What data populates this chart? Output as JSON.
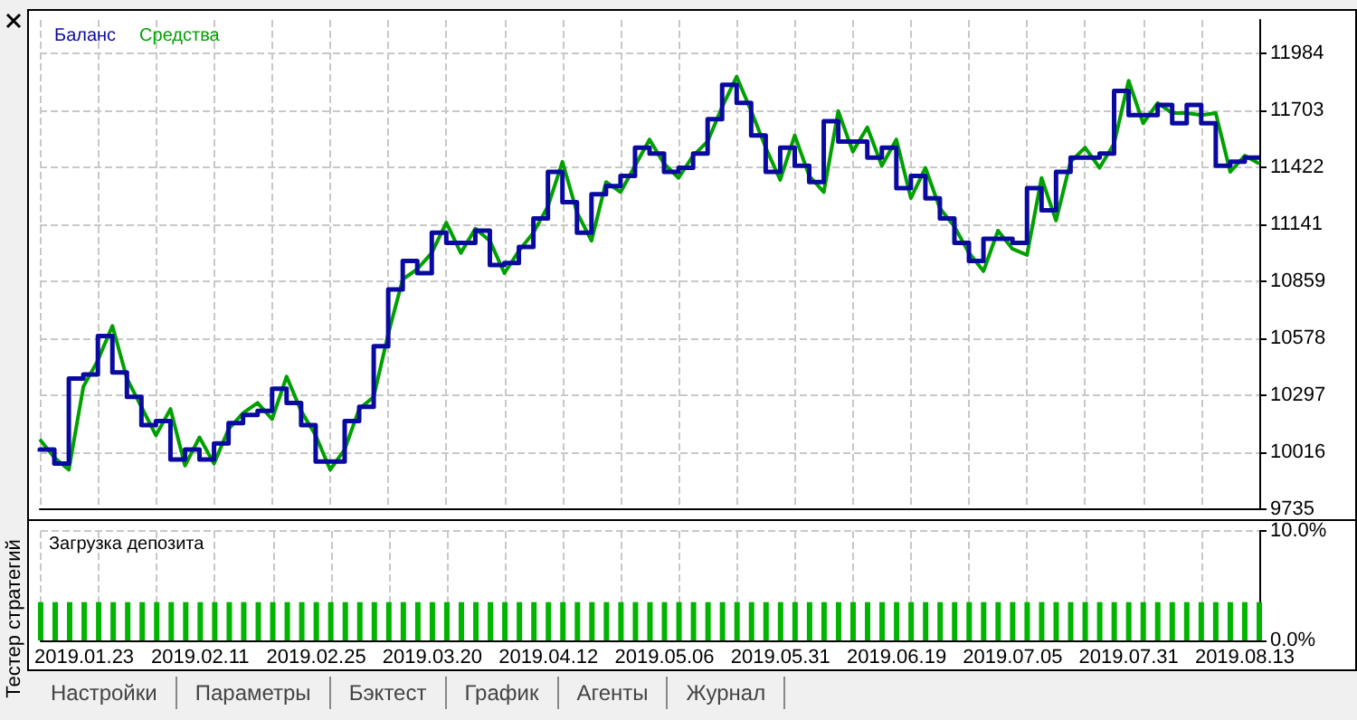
{
  "chart_data": [
    {
      "type": "line",
      "legend": "top left",
      "grid": true,
      "tick_labels": "y",
      "categories": [
        null,
        null,
        null,
        "2019.01.23",
        null,
        null,
        null,
        null,
        null,
        null,
        null,
        "2019.02.11",
        null,
        null,
        null,
        null,
        null,
        null,
        null,
        "2019.02.25",
        null,
        null,
        null,
        null,
        null,
        null,
        null,
        "2019.03.20",
        null,
        null,
        null,
        null,
        null,
        null,
        null,
        "2019.04.12",
        null,
        null,
        null,
        null,
        null,
        null,
        null,
        "2019.05.06",
        null,
        null,
        null,
        null,
        null,
        null,
        null,
        "2019.05.31",
        null,
        null,
        null,
        null,
        null,
        null,
        null,
        "2019.06.19",
        null,
        null,
        null,
        null,
        null,
        null,
        null,
        "2019.07.05",
        null,
        null,
        null,
        null,
        null,
        null,
        null,
        "2019.07.31",
        null,
        null,
        null,
        null,
        null,
        null,
        null,
        "2019.08.13",
        null
      ],
      "ylim": [
        9735,
        12150
      ],
      "yticks": [
        9735,
        10016,
        10297,
        10578,
        10859,
        11141,
        11422,
        11703,
        11984
      ],
      "series": [
        {
          "name": "Средства",
          "type": "line",
          "color": "#00a000",
          "values": [
            10080,
            9990,
            9930,
            10340,
            10470,
            10640,
            10380,
            10240,
            10100,
            10230,
            9950,
            10090,
            9960,
            10130,
            10210,
            10260,
            10180,
            10390,
            10220,
            10100,
            9930,
            10030,
            10230,
            10290,
            10600,
            10870,
            10920,
            11000,
            11150,
            11000,
            11120,
            11060,
            10900,
            11010,
            11100,
            11230,
            11450,
            11200,
            11060,
            11350,
            11300,
            11430,
            11560,
            11440,
            11370,
            11480,
            11550,
            11720,
            11870,
            11700,
            11520,
            11360,
            11580,
            11380,
            11300,
            11700,
            11500,
            11620,
            11430,
            11560,
            11270,
            11420,
            11220,
            11130,
            11000,
            10910,
            11110,
            11020,
            10990,
            11370,
            11160,
            11450,
            11520,
            11420,
            11540,
            11850,
            11640,
            11740,
            11690,
            11690,
            11680,
            11690,
            11400,
            11480,
            11440
          ]
        },
        {
          "name": "Баланс",
          "type": "step",
          "color": "#0a0aa0",
          "values": [
            10020,
            10030,
            9960,
            10380,
            10400,
            10590,
            10410,
            10290,
            10150,
            10170,
            9980,
            10030,
            9980,
            10060,
            10160,
            10200,
            10220,
            10330,
            10260,
            10150,
            9970,
            9970,
            10170,
            10240,
            10540,
            10820,
            10960,
            10900,
            11100,
            11050,
            11050,
            11110,
            10940,
            10950,
            11030,
            11170,
            11400,
            11250,
            11100,
            11290,
            11330,
            11380,
            11520,
            11490,
            11400,
            11420,
            11490,
            11660,
            11830,
            11740,
            11580,
            11400,
            11520,
            11430,
            11350,
            11650,
            11550,
            11550,
            11470,
            11520,
            11320,
            11380,
            11270,
            11170,
            11050,
            10960,
            11070,
            11070,
            11050,
            11320,
            11210,
            11400,
            11470,
            11470,
            11490,
            11800,
            11680,
            11680,
            11730,
            11640,
            11730,
            11640,
            11430,
            11450,
            11470
          ]
        }
      ]
    },
    {
      "type": "bar",
      "title": "Загрузка депозита",
      "grid": true,
      "categories": [
        null,
        null,
        null,
        "2019.01.23",
        null,
        null,
        null,
        null,
        null,
        null,
        null,
        "2019.02.11",
        null,
        null,
        null,
        null,
        null,
        null,
        null,
        "2019.02.25",
        null,
        null,
        null,
        null,
        null,
        null,
        null,
        "2019.03.20",
        null,
        null,
        null,
        null,
        null,
        null,
        null,
        "2019.04.12",
        null,
        null,
        null,
        null,
        null,
        null,
        null,
        "2019.05.06",
        null,
        null,
        null,
        null,
        null,
        null,
        null,
        "2019.05.31",
        null,
        null,
        null,
        null,
        null,
        null,
        null,
        "2019.06.19",
        null,
        null,
        null,
        null,
        null,
        null,
        null,
        "2019.07.05",
        null,
        null,
        null,
        null,
        null,
        null,
        null,
        "2019.07.31",
        null,
        null,
        null,
        null,
        null,
        null,
        null,
        "2019.08.13",
        null
      ],
      "ylim": [
        0,
        10
      ],
      "yticks": [
        {
          "value": 0,
          "label": "0.0%"
        },
        {
          "value": 10,
          "label": "10.0%"
        }
      ],
      "color": "#00b400",
      "values": [
        3.5,
        3.5,
        3.5,
        3.5,
        3.5,
        3.5,
        3.5,
        3.5,
        3.5,
        3.5,
        3.5,
        3.5,
        3.5,
        3.5,
        3.5,
        3.5,
        3.5,
        3.5,
        3.5,
        3.5,
        3.5,
        3.5,
        3.5,
        3.5,
        3.5,
        3.5,
        3.5,
        3.5,
        3.5,
        3.5,
        3.5,
        3.5,
        3.5,
        3.5,
        3.5,
        3.5,
        3.5,
        3.5,
        3.5,
        3.5,
        3.5,
        3.5,
        3.5,
        3.5,
        3.5,
        3.5,
        3.5,
        3.5,
        3.5,
        3.5,
        3.5,
        3.5,
        3.5,
        3.5,
        3.5,
        3.5,
        3.5,
        3.5,
        3.5,
        3.5,
        3.5,
        3.5,
        3.5,
        3.5,
        3.5,
        3.5,
        3.5,
        3.5,
        3.5,
        3.5,
        3.5,
        3.5,
        3.5,
        3.5,
        3.5,
        3.5,
        3.5,
        3.5,
        3.5,
        3.5,
        3.5,
        3.5,
        3.5,
        3.5,
        3.5
      ]
    },
    {
      "type": "other",
      "annotations": [
        "Тестер стратегий",
        "Настройки",
        "Параметры",
        "Бэктест",
        "График",
        "Агенты",
        "Журнал"
      ]
    }
  ]
}
